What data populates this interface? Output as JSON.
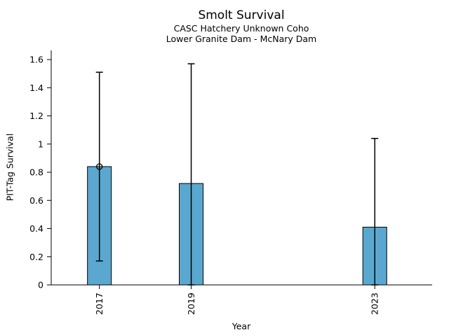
{
  "figure": {
    "title": "Smolt Survival",
    "subtitle_line1": "CASC Hatchery Unknown Coho",
    "subtitle_line2": "Lower Granite Dam - McNary Dam",
    "background_color": "#ffffff"
  },
  "chart_data": {
    "type": "bar",
    "title": "Smolt Survival",
    "subtitle": [
      "CASC Hatchery Unknown Coho",
      "Lower Granite Dam - McNary Dam"
    ],
    "xlabel": "Year",
    "ylabel": "PIT-Tag Survival",
    "x": [
      2017,
      2019,
      2023
    ],
    "xtick_labels": [
      "2017",
      "2019",
      "2023"
    ],
    "xtick_rotation_deg": 90,
    "values": [
      0.84,
      0.72,
      0.41
    ],
    "error_low": [
      0.17,
      0.0,
      0.0
    ],
    "error_high": [
      1.51,
      1.57,
      1.04
    ],
    "point_markers": [
      {
        "x": 2017,
        "y": 0.84,
        "style": "open-circle"
      }
    ],
    "bar_width_years": 0.52,
    "bar_color": "#5AA8D0",
    "bar_edge_color": "#000000",
    "errorbar_color": "#000000",
    "axis_color": "#000000",
    "text_color": "#000000",
    "xlim": [
      2015.95,
      2024.25
    ],
    "ylim": [
      0,
      1.665
    ],
    "yticks": [
      0,
      0.2,
      0.4,
      0.6,
      0.8,
      1.0,
      1.2,
      1.4,
      1.6
    ],
    "ytick_labels": [
      "0",
      "0.2",
      "0.4",
      "0.6",
      "0.8",
      "1",
      "1.2",
      "1.4",
      "1.6"
    ],
    "grid": false,
    "legend": null,
    "spines": [
      "left",
      "bottom"
    ]
  }
}
